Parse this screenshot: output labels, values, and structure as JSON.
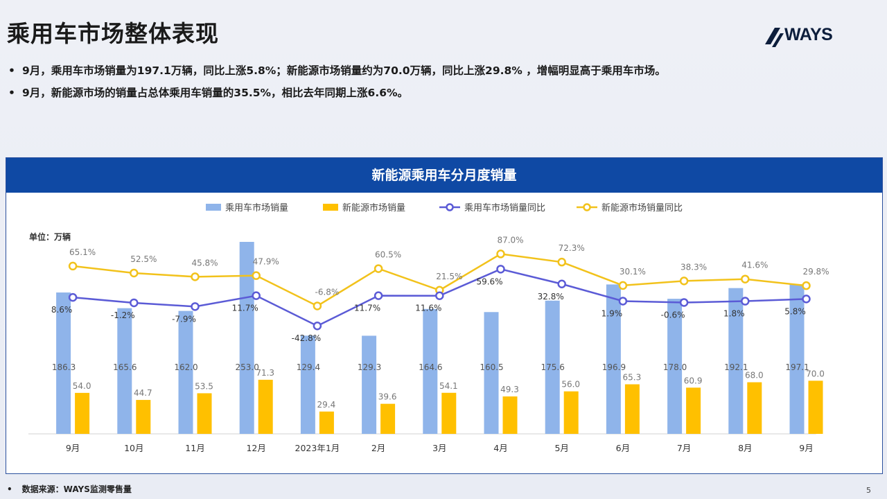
{
  "page": {
    "title": "乘用车市场整体表现",
    "logo_text": "WAYS",
    "bullets": [
      "9月，乘用车市场销量为197.1万辆，同比上涨5.8%；新能源市场销量约为70.0万辆，同比上涨29.8% ，增幅明显高于乘用车市场。",
      "9月，新能源市场的销量占总体乘用车销量的35.5%，相比去年同期上涨6.6%。"
    ],
    "footer_label": "数据来源：WAYS监测零售量",
    "page_number": "5"
  },
  "colors": {
    "total_bar": "#8fb4ea",
    "nev_bar": "#ffc000",
    "total_line": "#5b5bd6",
    "nev_line": "#f2c21b",
    "header": "#0f49a4"
  },
  "chart_data": {
    "type": "bar",
    "title": "新能源乘用车分月度销量",
    "unit_label": "单位：万辆",
    "legend_position": "top",
    "categories": [
      "9月",
      "10月",
      "11月",
      "12月",
      "2023年1月",
      "2月",
      "3月",
      "4月",
      "5月",
      "6月",
      "7月",
      "8月",
      "9月"
    ],
    "series": [
      {
        "name": "乘用车市场销量",
        "kind": "bar",
        "values": [
          186.3,
          165.6,
          162.0,
          253.0,
          129.4,
          129.3,
          164.6,
          160.5,
          175.6,
          196.9,
          178.0,
          192.1,
          197.1
        ]
      },
      {
        "name": "新能源市场销量",
        "kind": "bar",
        "values": [
          54.0,
          44.7,
          53.5,
          71.3,
          29.4,
          39.6,
          54.1,
          49.3,
          56.0,
          65.3,
          60.9,
          68.0,
          70.0
        ]
      },
      {
        "name": "乘用车市场销量同比",
        "kind": "line",
        "unit": "%",
        "values": [
          8.6,
          -1.2,
          -7.9,
          11.7,
          -42.8,
          11.7,
          11.6,
          59.6,
          32.8,
          1.9,
          -0.6,
          1.8,
          5.8
        ]
      },
      {
        "name": "新能源市场销量同比",
        "kind": "line",
        "unit": "%",
        "values": [
          65.1,
          52.5,
          45.8,
          47.9,
          -6.8,
          60.5,
          21.5,
          87.0,
          72.3,
          30.1,
          38.3,
          41.6,
          29.8
        ]
      }
    ]
  }
}
